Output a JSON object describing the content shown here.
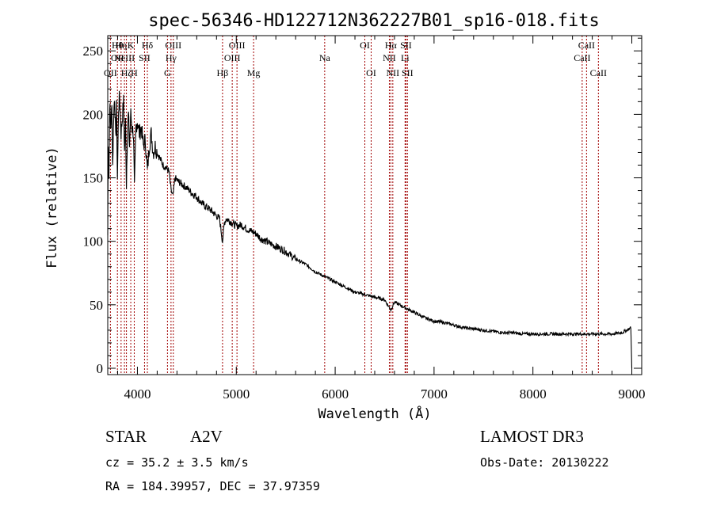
{
  "chart_data": {
    "type": "line",
    "title": "spec-56346-HD122712N362227B01_sp16-018.fits",
    "xlabel": "Wavelength (Å)",
    "ylabel": "Flux (relative)",
    "xlim": [
      3700,
      9100
    ],
    "ylim": [
      -5,
      262
    ],
    "x_ticks": [
      4000,
      5000,
      6000,
      7000,
      8000,
      9000
    ],
    "y_ticks": [
      0,
      50,
      100,
      150,
      200,
      250
    ],
    "series": [
      {
        "name": "flux",
        "color": "#000000",
        "x": [
          3700,
          3705,
          3712,
          3720,
          3730,
          3742,
          3750,
          3760,
          3770,
          3780,
          3790,
          3798,
          3810,
          3820,
          3835,
          3850,
          3860,
          3870,
          3880,
          3889,
          3900,
          3910,
          3920,
          3933,
          3945,
          3960,
          3970,
          3985,
          4000,
          4020,
          4040,
          4060,
          4080,
          4101,
          4120,
          4140,
          4160,
          4180,
          4200,
          4230,
          4260,
          4290,
          4320,
          4340,
          4360,
          4380,
          4400,
          4450,
          4500,
          4550,
          4600,
          4650,
          4700,
          4750,
          4800,
          4830,
          4861,
          4880,
          4900,
          4950,
          5000,
          5050,
          5100,
          5150,
          5200,
          5250,
          5300,
          5400,
          5500,
          5600,
          5700,
          5800,
          5900,
          6000,
          6100,
          6200,
          6300,
          6400,
          6500,
          6563,
          6600,
          6700,
          6800,
          6900,
          7000,
          7100,
          7200,
          7300,
          7400,
          7500,
          7600,
          7700,
          7800,
          7900,
          8000,
          8100,
          8200,
          8300,
          8400,
          8500,
          8600,
          8700,
          8800,
          8900,
          8950,
          8990,
          9000
        ],
        "values": [
          105,
          180,
          150,
          210,
          190,
          205,
          160,
          200,
          215,
          180,
          205,
          150,
          205,
          215,
          185,
          200,
          210,
          170,
          195,
          145,
          190,
          200,
          175,
          200,
          190,
          185,
          140,
          190,
          195,
          185,
          190,
          175,
          180,
          155,
          175,
          185,
          170,
          175,
          170,
          165,
          160,
          158,
          155,
          140,
          135,
          150,
          148,
          145,
          142,
          138,
          135,
          130,
          127,
          124,
          120,
          118,
          100,
          115,
          118,
          115,
          112,
          113,
          110,
          108,
          106,
          102,
          100,
          96,
          92,
          86,
          82,
          76,
          72,
          68,
          64,
          60,
          58,
          56,
          54,
          46,
          52,
          48,
          44,
          40,
          37,
          36,
          34,
          32,
          31,
          30,
          29,
          28,
          28,
          27,
          27,
          27,
          27,
          27,
          27,
          27,
          27,
          27,
          27,
          28,
          30,
          32,
          0
        ]
      }
    ],
    "lines": [
      {
        "wl": 3727,
        "labels": [
          {
            "text": "OII",
            "row": 3
          }
        ]
      },
      {
        "wl": 3798,
        "labels": [
          {
            "text": "Hθ",
            "row": 1
          },
          {
            "text": "OII",
            "row": 2
          }
        ]
      },
      {
        "wl": 3835,
        "labels": [
          {
            "text": "Hη",
            "row": 1
          }
        ]
      },
      {
        "wl": 3869,
        "labels": [
          {
            "text": "NeIII",
            "row": 2
          }
        ]
      },
      {
        "wl": 3889,
        "labels": [
          {
            "text": "Hζ",
            "row": 3
          }
        ]
      },
      {
        "wl": 3933,
        "labels": [
          {
            "text": "K",
            "row": 1
          }
        ]
      },
      {
        "wl": 3968,
        "labels": [
          {
            "text": "H",
            "row": 3
          }
        ]
      },
      {
        "wl": 4072,
        "labels": [
          {
            "text": "SII",
            "row": 2
          }
        ]
      },
      {
        "wl": 4101,
        "labels": [
          {
            "text": "Hδ",
            "row": 1
          }
        ]
      },
      {
        "wl": 4304,
        "labels": [
          {
            "text": "G",
            "row": 3
          }
        ]
      },
      {
        "wl": 4340,
        "labels": [
          {
            "text": "Hγ",
            "row": 2
          }
        ]
      },
      {
        "wl": 4363,
        "labels": [
          {
            "text": "OIII",
            "row": 1
          }
        ]
      },
      {
        "wl": 4861,
        "labels": [
          {
            "text": "Hβ",
            "row": 3
          }
        ]
      },
      {
        "wl": 4959,
        "labels": [
          {
            "text": "OIII",
            "row": 2
          }
        ]
      },
      {
        "wl": 5007,
        "labels": [
          {
            "text": "OIII",
            "row": 1
          }
        ]
      },
      {
        "wl": 5175,
        "labels": [
          {
            "text": "Mg",
            "row": 3
          }
        ]
      },
      {
        "wl": 5894,
        "labels": [
          {
            "text": "Na",
            "row": 2
          }
        ]
      },
      {
        "wl": 6300,
        "labels": [
          {
            "text": "OI",
            "row": 1
          }
        ]
      },
      {
        "wl": 6364,
        "labels": [
          {
            "text": "OI",
            "row": 3
          }
        ]
      },
      {
        "wl": 6548,
        "labels": [
          {
            "text": "NII",
            "row": 2
          }
        ]
      },
      {
        "wl": 6563,
        "labels": [
          {
            "text": "Hα",
            "row": 1
          }
        ]
      },
      {
        "wl": 6583,
        "labels": [
          {
            "text": "NII",
            "row": 3
          }
        ]
      },
      {
        "wl": 6707,
        "labels": [
          {
            "text": "Li",
            "row": 2
          }
        ]
      },
      {
        "wl": 6716,
        "labels": [
          {
            "text": "SII",
            "row": 1
          }
        ]
      },
      {
        "wl": 6731,
        "labels": [
          {
            "text": "SII",
            "row": 3
          }
        ]
      },
      {
        "wl": 8498,
        "labels": [
          {
            "text": "CaII",
            "row": 2
          }
        ]
      },
      {
        "wl": 8542,
        "labels": [
          {
            "text": "CaII",
            "row": 1
          }
        ]
      },
      {
        "wl": 8662,
        "labels": [
          {
            "text": "CaII",
            "row": 3
          }
        ]
      }
    ],
    "line_color": "#a00000"
  },
  "info": {
    "object_class": "STAR",
    "subclass": "A2V",
    "survey": "LAMOST DR3",
    "redshift": "cz = 35.2 ± 3.5 km/s",
    "obs_date": "Obs-Date: 20130222",
    "coords": "RA = 184.39957, DEC =  37.97359"
  }
}
